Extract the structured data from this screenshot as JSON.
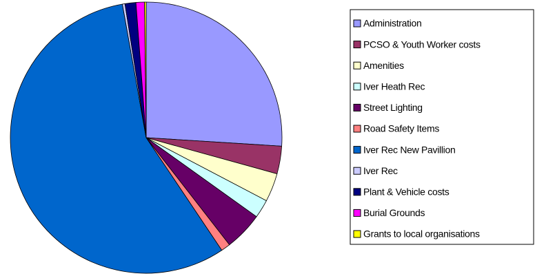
{
  "chart_data": {
    "type": "pie",
    "categories": [
      "Administration",
      "PCSO & Youth Worker costs",
      "Amenities",
      "Iver Heath Rec",
      "Street Lighting",
      "Road Safety Items",
      "Iver  Rec New Pavillion",
      "Iver Rec",
      "Plant & Vehicle costs",
      "Burial Grounds",
      "Grants to local organisations"
    ],
    "values": [
      26,
      3.3,
      3.4,
      2.2,
      4.6,
      1.1,
      56.6,
      0.3,
      1.3,
      1,
      0.2
    ],
    "colors": [
      "#9999ff",
      "#993366",
      "#ffffcc",
      "#ccffff",
      "#660066",
      "#ff8080",
      "#0066cc",
      "#ccccff",
      "#000080",
      "#ff00ff",
      "#ffff00"
    ],
    "legend": "right"
  }
}
